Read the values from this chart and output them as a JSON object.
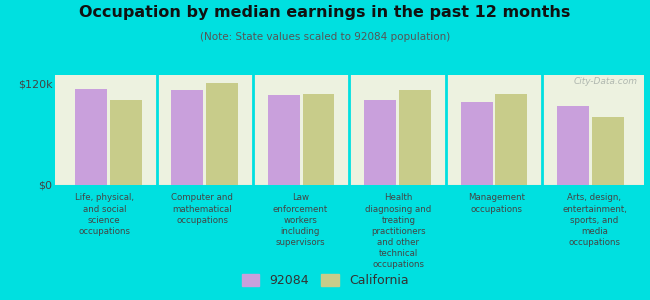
{
  "title": "Occupation by median earnings in the past 12 months",
  "subtitle": "(Note: State values scaled to 92084 population)",
  "categories": [
    "Life, physical,\nand social\nscience\noccupations",
    "Computer and\nmathematical\noccupations",
    "Law\nenforcement\nworkers\nincluding\nsupervisors",
    "Health\ndiagnosing and\ntreating\npractitioners\nand other\ntechnical\noccupations",
    "Management\noccupations",
    "Arts, design,\nentertainment,\nsports, and\nmedia\noccupations"
  ],
  "values_92084": [
    113000,
    112000,
    106000,
    100000,
    98000,
    93000
  ],
  "values_california": [
    100000,
    120000,
    108000,
    112000,
    108000,
    80000
  ],
  "color_92084": "#c9a0dc",
  "color_california": "#c8cc8a",
  "ylim": [
    0,
    130000
  ],
  "yticks": [
    0,
    120000
  ],
  "ytick_labels": [
    "$0",
    "$120k"
  ],
  "background_color": "#edf2e0",
  "outer_background": "#00e0e0",
  "legend_label_92084": "92084",
  "legend_label_california": "California",
  "watermark": "City-Data.com"
}
